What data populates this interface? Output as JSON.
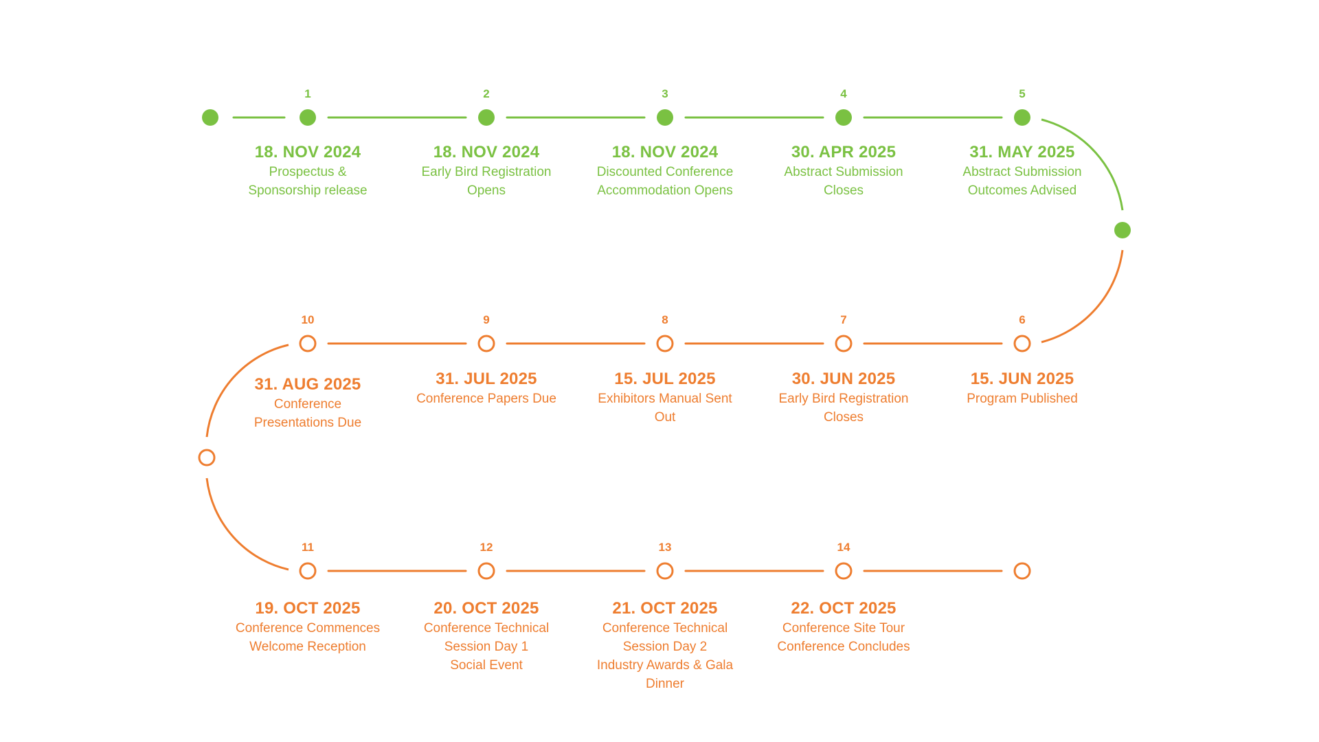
{
  "colors": {
    "completed": "#7ac142",
    "upcoming": "#ee7d2f"
  },
  "milestones": [
    {
      "number": "1",
      "date": "18. NOV 2024",
      "label": "Prospectus &\nSponsorship release",
      "status": "completed"
    },
    {
      "number": "2",
      "date": "18. NOV 2024",
      "label": "Early Bird Registration\nOpens",
      "status": "completed"
    },
    {
      "number": "3",
      "date": "18. NOV 2024",
      "label": "Discounted Conference\nAccommodation Opens",
      "status": "completed"
    },
    {
      "number": "4",
      "date": "30. APR 2025",
      "label": "Abstract Submission\nCloses",
      "status": "completed"
    },
    {
      "number": "5",
      "date": "31. MAY 2025",
      "label": "Abstract Submission\nOutcomes Advised",
      "status": "completed"
    },
    {
      "number": "6",
      "date": "15. JUN 2025",
      "label": "Program Published",
      "status": "upcoming"
    },
    {
      "number": "7",
      "date": "30. JUN 2025",
      "label": "Early Bird Registration\nCloses",
      "status": "upcoming"
    },
    {
      "number": "8",
      "date": "15. JUL 2025",
      "label": "Exhibitors Manual Sent\nOut",
      "status": "upcoming"
    },
    {
      "number": "9",
      "date": "31. JUL 2025",
      "label": "Conference Papers Due",
      "status": "upcoming"
    },
    {
      "number": "10",
      "date": "31. AUG 2025",
      "label": "Conference\nPresentations Due",
      "status": "upcoming"
    },
    {
      "number": "11",
      "date": "19. OCT 2025",
      "label": "Conference Commences\nWelcome Reception",
      "status": "upcoming"
    },
    {
      "number": "12",
      "date": "20. OCT 2025",
      "label": "Conference Technical\nSession Day 1\nSocial Event",
      "status": "upcoming"
    },
    {
      "number": "13",
      "date": "21. OCT 2025",
      "label": "Conference Technical\nSession Day 2\nIndustry Awards & Gala\nDinner",
      "status": "upcoming"
    },
    {
      "number": "14",
      "date": "22. OCT 2025",
      "label": "Conference Site Tour\nConference Concludes",
      "status": "upcoming"
    }
  ]
}
